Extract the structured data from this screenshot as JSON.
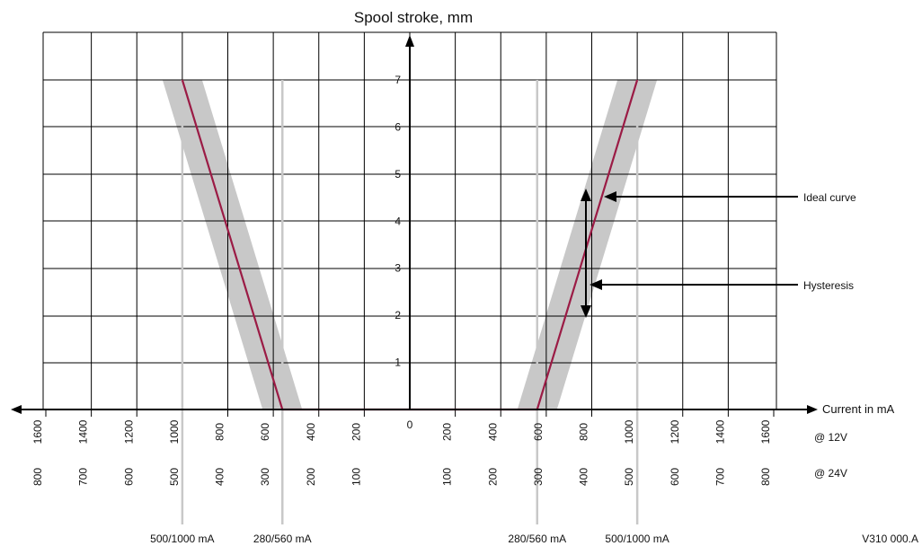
{
  "chart_data": {
    "type": "line",
    "title": "Spool stroke, mm",
    "xlabel": "Current in mA",
    "ylabel": "Spool stroke, mm",
    "ylim": [
      0,
      7
    ],
    "y_ticks": [
      "1",
      "2",
      "3",
      "4",
      "5",
      "6",
      "7"
    ],
    "x_origin_label": "0",
    "x_ticks_12v": [
      "1600",
      "1400",
      "1200",
      "1000",
      "800",
      "600",
      "400",
      "200",
      "200",
      "400",
      "600",
      "800",
      "1000",
      "1200",
      "1400",
      "1600"
    ],
    "x_ticks_24v": [
      "800",
      "700",
      "600",
      "500",
      "400",
      "300",
      "200",
      "100",
      "100",
      "200",
      "300",
      "400",
      "500",
      "600",
      "700",
      "800"
    ],
    "row_labels": {
      "v12": "@ 12V",
      "v24": "@ 24V"
    },
    "xlim_12v": [
      -1600,
      1600
    ],
    "grid": true,
    "series": [
      {
        "x": [
          -1000,
          -560
        ],
        "y": [
          7,
          0
        ]
      },
      {
        "x": [
          -560,
          560
        ],
        "y": [
          0,
          0
        ]
      },
      {
        "x": [
          560,
          1000
        ],
        "y": [
          0,
          7
        ]
      }
    ],
    "hysteresis_band": {
      "left": [
        [
          -1000,
          7
        ],
        [
          -560,
          0
        ]
      ],
      "right": [
        [
          560,
          0
        ],
        [
          1000,
          7
        ]
      ]
    },
    "markers": [
      {
        "x": -1000,
        "label": "500/1000 mA"
      },
      {
        "x": -560,
        "label": "280/560 mA"
      },
      {
        "x": 560,
        "label": "280/560 mA"
      },
      {
        "x": 1000,
        "label": "500/1000 mA"
      }
    ],
    "annotations": {
      "ideal": "Ideal curve",
      "hysteresis": "Hysteresis"
    },
    "figure_code": "V310 000.A",
    "colors": {
      "curve": "#9b1b45",
      "band": "#c8c8c8",
      "grid": "#000000",
      "marker_line": "#c8c8c8"
    }
  }
}
